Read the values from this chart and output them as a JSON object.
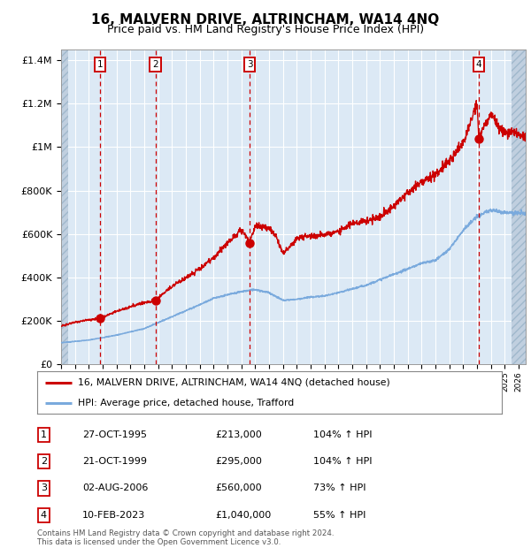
{
  "title": "16, MALVERN DRIVE, ALTRINCHAM, WA14 4NQ",
  "subtitle": "Price paid vs. HM Land Registry's House Price Index (HPI)",
  "title_fontsize": 11,
  "subtitle_fontsize": 9,
  "xlim": [
    1993.0,
    2026.5
  ],
  "ylim": [
    0,
    1450000
  ],
  "yticks": [
    0,
    200000,
    400000,
    600000,
    800000,
    1000000,
    1200000,
    1400000
  ],
  "ytick_labels": [
    "£0",
    "£200K",
    "£400K",
    "£600K",
    "£800K",
    "£1M",
    "£1.2M",
    "£1.4M"
  ],
  "background_color": "#dce9f5",
  "hatch_color": "#c0cfdf",
  "grid_color": "#ffffff",
  "sale_color": "#cc0000",
  "hpi_color": "#7aaadd",
  "transaction_markers": [
    {
      "id": 1,
      "year": 1995.82,
      "price": 213000
    },
    {
      "id": 2,
      "year": 1999.81,
      "price": 295000
    },
    {
      "id": 3,
      "year": 2006.59,
      "price": 560000
    },
    {
      "id": 4,
      "year": 2023.11,
      "price": 1040000
    }
  ],
  "legend_sale_label": "16, MALVERN DRIVE, ALTRINCHAM, WA14 4NQ (detached house)",
  "legend_hpi_label": "HPI: Average price, detached house, Trafford",
  "footer_text": "Contains HM Land Registry data © Crown copyright and database right 2024.\nThis data is licensed under the Open Government Licence v3.0.",
  "table_rows": [
    {
      "id": 1,
      "date": "27-OCT-1995",
      "price": "£213,000",
      "pct": "104% ↑ HPI"
    },
    {
      "id": 2,
      "date": "21-OCT-1999",
      "price": "£295,000",
      "pct": "104% ↑ HPI"
    },
    {
      "id": 3,
      "date": "02-AUG-2006",
      "price": "£560,000",
      "pct": "73% ↑ HPI"
    },
    {
      "id": 4,
      "date": "10-FEB-2023",
      "price": "£1,040,000",
      "pct": "55% ↑ HPI"
    }
  ]
}
